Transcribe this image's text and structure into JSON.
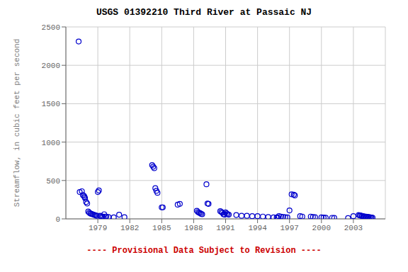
{
  "chart_data": {
    "type": "scatter",
    "title": "USGS 01392210 Third River at Passaic NJ",
    "ylabel": "Streamflow, in cubic feet per second",
    "annotations": [
      {
        "text": "---- Provisional Data Subject to Revision ----",
        "color": "#cc0000"
      }
    ],
    "xlim": [
      1976,
      2006
    ],
    "ylim": [
      0,
      2500
    ],
    "xticks": [
      1979,
      1982,
      1985,
      1988,
      1991,
      1994,
      1997,
      2000,
      2003
    ],
    "yticks": [
      0,
      500,
      1000,
      1500,
      2000,
      2500
    ],
    "color": "#0000cc",
    "marker": "open_circle",
    "grid": true,
    "x": [
      1977.2,
      1977.3,
      1977.5,
      1977.6,
      1977.7,
      1977.75,
      1977.8,
      1977.9,
      1978.0,
      1978.1,
      1978.2,
      1978.3,
      1978.4,
      1978.5,
      1978.6,
      1978.7,
      1978.8,
      1978.9,
      1979.0,
      1979.1,
      1979.2,
      1979.3,
      1979.4,
      1979.5,
      1979.6,
      1979.7,
      1979.8,
      1980.0,
      1980.5,
      1981.0,
      1981.5,
      1984.1,
      1984.2,
      1984.3,
      1984.4,
      1984.5,
      1984.6,
      1985.0,
      1985.1,
      1986.5,
      1986.7,
      1988.3,
      1988.4,
      1988.5,
      1988.6,
      1988.7,
      1988.8,
      1989.2,
      1989.3,
      1989.4,
      1990.5,
      1990.6,
      1990.7,
      1990.8,
      1990.9,
      1991.0,
      1991.1,
      1991.2,
      1991.3,
      1992.0,
      1992.5,
      1993.0,
      1993.5,
      1994.0,
      1994.5,
      1995.0,
      1995.5,
      1995.8,
      1995.9,
      1996.0,
      1996.2,
      1996.4,
      1996.6,
      1996.8,
      1997.0,
      1997.2,
      1997.4,
      1997.5,
      1998.0,
      1998.2,
      1999.0,
      1999.2,
      1999.4,
      2000.0,
      2000.2,
      2000.4,
      2001.0,
      2001.2,
      2002.5,
      2003.0,
      2003.5,
      2003.6,
      2003.7,
      2003.8,
      2003.9,
      2004.0,
      2004.1,
      2004.2,
      2004.3,
      2004.4,
      2004.5,
      2004.6,
      2004.7,
      2004.8
    ],
    "values": [
      2310,
      350,
      360,
      310,
      300,
      285,
      270,
      220,
      200,
      95,
      80,
      70,
      65,
      60,
      55,
      50,
      45,
      40,
      350,
      370,
      40,
      35,
      30,
      28,
      60,
      30,
      30,
      25,
      20,
      55,
      22,
      700,
      680,
      660,
      400,
      365,
      340,
      150,
      150,
      185,
      195,
      105,
      90,
      80,
      75,
      65,
      60,
      450,
      200,
      195,
      100,
      90,
      80,
      60,
      55,
      85,
      70,
      60,
      55,
      50,
      40,
      40,
      35,
      35,
      30,
      25,
      20,
      18,
      15,
      35,
      30,
      25,
      22,
      20,
      110,
      320,
      315,
      305,
      35,
      30,
      30,
      25,
      22,
      20,
      18,
      15,
      14,
      12,
      10,
      35,
      50,
      45,
      42,
      38,
      35,
      32,
      30,
      28,
      26,
      24,
      22,
      20,
      18,
      16
    ]
  }
}
